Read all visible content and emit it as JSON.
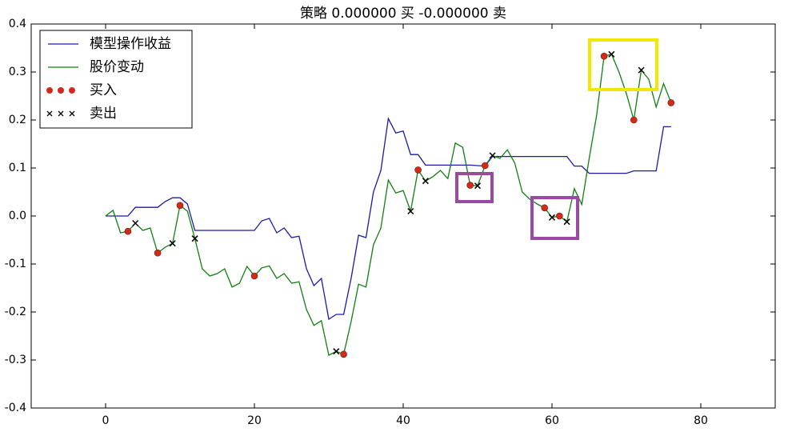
{
  "chart_data": {
    "type": "line",
    "title": "策略 0.000000 买  -0.000000 卖",
    "x": [
      0,
      1,
      2,
      3,
      4,
      5,
      6,
      7,
      8,
      9,
      10,
      11,
      12,
      13,
      14,
      15,
      16,
      17,
      18,
      19,
      20,
      21,
      22,
      23,
      24,
      25,
      26,
      27,
      28,
      29,
      30,
      31,
      32,
      33,
      34,
      35,
      36,
      37,
      38,
      39,
      40,
      41,
      42,
      43,
      44,
      45,
      46,
      47,
      48,
      49,
      50,
      51,
      52,
      53,
      54,
      55,
      56,
      57,
      58,
      59,
      60,
      61,
      62,
      63,
      64,
      65,
      66,
      67,
      68,
      69,
      70,
      71,
      72,
      73,
      74,
      75,
      76
    ],
    "series": [
      {
        "name": "模型操作收益",
        "style": "line",
        "color": "#1a1aaa",
        "values": [
          0,
          0,
          0,
          0,
          0.018,
          0.018,
          0.018,
          0.018,
          0.03,
          0.038,
          0.038,
          0.025,
          -0.03,
          -0.03,
          -0.03,
          -0.03,
          -0.03,
          -0.03,
          -0.03,
          -0.03,
          -0.03,
          -0.01,
          -0.005,
          -0.035,
          -0.025,
          -0.045,
          -0.042,
          -0.11,
          -0.145,
          -0.13,
          -0.215,
          -0.205,
          -0.205,
          -0.13,
          -0.04,
          -0.045,
          0.05,
          0.095,
          0.203,
          0.173,
          0.177,
          0.128,
          0.128,
          0.106,
          0.106,
          0.106,
          0.106,
          0.106,
          0.106,
          0.106,
          0.105,
          0.104,
          0.124,
          0.124,
          0.124,
          0.124,
          0.124,
          0.124,
          0.124,
          0.124,
          0.124,
          0.124,
          0.124,
          0.104,
          0.104,
          0.089,
          0.089,
          0.089,
          0.089,
          0.089,
          0.089,
          0.094,
          0.094,
          0.094,
          0.094,
          0.186,
          0.186
        ]
      },
      {
        "name": "股价变动",
        "style": "line",
        "color": "#108010",
        "values": [
          0,
          0.012,
          -0.035,
          -0.032,
          -0.015,
          -0.03,
          -0.025,
          -0.077,
          -0.065,
          -0.057,
          0.022,
          0.01,
          -0.047,
          -0.11,
          -0.125,
          -0.12,
          -0.11,
          -0.148,
          -0.14,
          -0.105,
          -0.125,
          -0.108,
          -0.104,
          -0.13,
          -0.12,
          -0.14,
          -0.137,
          -0.195,
          -0.228,
          -0.218,
          -0.29,
          -0.282,
          -0.288,
          -0.22,
          -0.142,
          -0.148,
          -0.06,
          -0.025,
          0.075,
          0.048,
          0.053,
          0.01,
          0.096,
          0.073,
          0.082,
          0.095,
          0.078,
          0.152,
          0.143,
          0.064,
          0.063,
          0.105,
          0.126,
          0.12,
          0.138,
          0.11,
          0.05,
          0.035,
          0.025,
          0.017,
          -0.003,
          0,
          -0.012,
          0.057,
          0.024,
          0.12,
          0.21,
          0.333,
          0.337,
          0.3,
          0.255,
          0.2,
          0.304,
          0.285,
          0.227,
          0.276,
          0.236
        ]
      },
      {
        "name": "买入",
        "style": "scatter",
        "marker": "circle",
        "color": "#d42a1a",
        "x": [
          3,
          7,
          10,
          20,
          32,
          42,
          49,
          51,
          59,
          61,
          67,
          71,
          76
        ],
        "values": [
          -0.032,
          -0.077,
          0.022,
          -0.125,
          -0.288,
          0.096,
          0.064,
          0.105,
          0.017,
          0,
          0.333,
          0.2,
          0.236
        ]
      },
      {
        "name": "卖出",
        "style": "scatter",
        "marker": "x",
        "color": "#000000",
        "x": [
          4,
          9,
          12,
          31,
          41,
          43,
          50,
          52,
          60,
          62,
          68,
          72
        ],
        "values": [
          -0.015,
          -0.057,
          -0.047,
          -0.282,
          0.01,
          0.073,
          0.063,
          0.126,
          -0.003,
          -0.012,
          0.337,
          0.304
        ]
      }
    ],
    "xlim": [
      -10,
      90
    ],
    "xticks": [
      0,
      20,
      40,
      60,
      80
    ],
    "ylim": [
      -0.4,
      0.4
    ],
    "yticks": [
      -0.4,
      -0.3,
      -0.2,
      -0.1,
      {
        "value": 0,
        "label": "0.0"
      },
      0.1,
      0.2,
      0.3,
      0.4
    ],
    "legend": "upper left"
  }
}
